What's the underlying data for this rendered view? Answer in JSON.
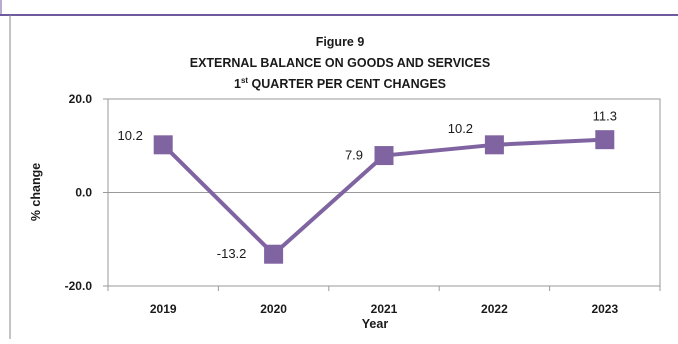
{
  "colors": {
    "series": "#8064a2",
    "frame": "#8a8a8a",
    "axis": "#9a9a9a",
    "gridline": "#bfbfbf",
    "top_border": "#6f5aa0"
  },
  "chart_data": {
    "type": "line",
    "title": "Figure 9",
    "subtitle_line1": "EXTERNAL BALANCE ON GOODS AND SERVICES",
    "subtitle_line2_main": "1",
    "subtitle_line2_sup": "st",
    "subtitle_line2_rest": " QUARTER PER CENT CHANGES",
    "xlabel": "Year",
    "ylabel": "% change",
    "categories": [
      "2019",
      "2020",
      "2021",
      "2022",
      "2023"
    ],
    "series": [
      {
        "values": [
          10.2,
          -13.2,
          7.9,
          10.2,
          11.3
        ],
        "labels": [
          "10.2",
          "-13.2",
          "7.9",
          "10.2",
          "11.3"
        ],
        "marker": "square"
      }
    ],
    "ylim": [
      -20,
      20
    ],
    "yticks": [
      20,
      0,
      -20
    ],
    "ytick_labels": [
      "20.0",
      "0.0",
      "-20.0"
    ],
    "grid": false,
    "zero_line": true
  }
}
